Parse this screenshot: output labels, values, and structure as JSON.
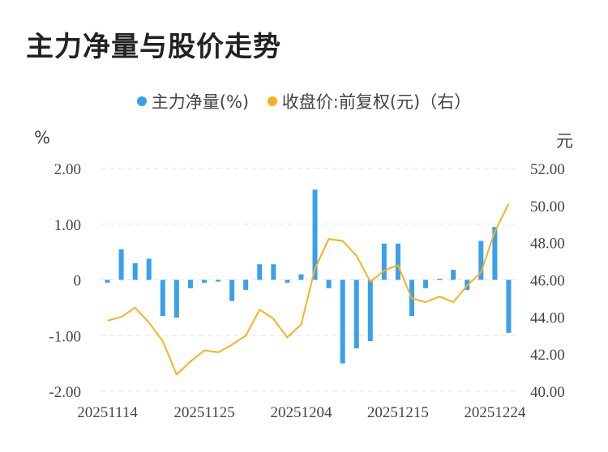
{
  "title": "主力净量与股价走势",
  "legend": [
    {
      "label": "主力净量(%)",
      "color": "#3aa0ea"
    },
    {
      "label": "收盘价:前复权(元)（右）",
      "color": "#f5b21c"
    }
  ],
  "chart_data": {
    "type": "bar+line",
    "title": "主力净量与股价走势",
    "y_left_unit": "%",
    "y_right_unit": "元",
    "y_left_ticks": [
      "2.00",
      "1.00",
      "0",
      "-1.00",
      "-2.00"
    ],
    "y_left_range": [
      -2,
      2
    ],
    "y_right_ticks": [
      "52.00",
      "50.00",
      "48.00",
      "46.00",
      "44.00",
      "42.00",
      "40.00"
    ],
    "y_right_range": [
      40,
      52
    ],
    "x_tick_labels": [
      "20251114",
      "20251125",
      "20251204",
      "20251215",
      "20251224"
    ],
    "x_tick_indices": [
      0,
      7,
      14,
      21,
      28
    ],
    "grid": "horizontal dashed",
    "series": [
      {
        "name": "主力净量(%)",
        "type": "bar",
        "color": "#3aa0ea",
        "values": [
          -0.05,
          0.55,
          0.3,
          0.38,
          -0.65,
          -0.68,
          -0.15,
          -0.05,
          -0.03,
          -0.38,
          -0.18,
          0.28,
          0.28,
          -0.05,
          0.1,
          1.62,
          -0.15,
          -1.5,
          -1.23,
          -1.1,
          0.65,
          0.65,
          -0.65,
          -0.15,
          0.02,
          0.18,
          -0.18,
          0.7,
          0.95,
          -0.95
        ]
      },
      {
        "name": "收盘价:前复权(元)（右）",
        "type": "line",
        "color": "#f5b21c",
        "values": [
          43.8,
          44.0,
          44.5,
          43.7,
          42.7,
          40.9,
          41.6,
          42.2,
          42.1,
          42.5,
          43.0,
          44.4,
          43.9,
          42.9,
          43.6,
          46.6,
          48.2,
          48.1,
          47.3,
          45.9,
          46.5,
          46.8,
          45.0,
          44.8,
          45.1,
          44.8,
          45.7,
          46.4,
          48.6,
          50.1
        ]
      }
    ]
  }
}
